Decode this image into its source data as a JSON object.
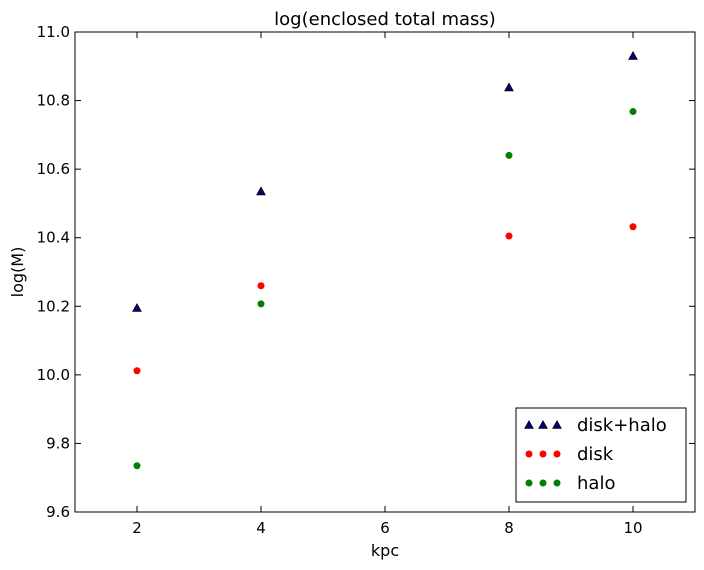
{
  "chart_data": {
    "type": "scatter",
    "title": "log(enclosed total mass)",
    "xlabel": "kpc",
    "ylabel": "log(M)",
    "xlim": [
      1,
      11
    ],
    "ylim": [
      9.6,
      11.0
    ],
    "xticks": [
      "2",
      "4",
      "6",
      "8",
      "10"
    ],
    "yticks": [
      "9.6",
      "9.8",
      "10.0",
      "10.2",
      "10.4",
      "10.6",
      "10.8",
      "11.0"
    ],
    "legend_position": "bottom-right",
    "series": [
      {
        "name": "disk+halo",
        "marker": "triangle",
        "color": "#000080",
        "x": [
          2,
          4,
          8,
          10
        ],
        "y": [
          10.195,
          10.535,
          10.838,
          10.93
        ]
      },
      {
        "name": "disk",
        "marker": "circle",
        "color": "#ff0000",
        "x": [
          2,
          4,
          8,
          10
        ],
        "y": [
          10.012,
          10.26,
          10.405,
          10.432
        ]
      },
      {
        "name": "halo",
        "marker": "circle",
        "color": "#008000",
        "x": [
          2,
          4,
          8,
          10
        ],
        "y": [
          9.735,
          10.207,
          10.64,
          10.768
        ]
      }
    ]
  }
}
